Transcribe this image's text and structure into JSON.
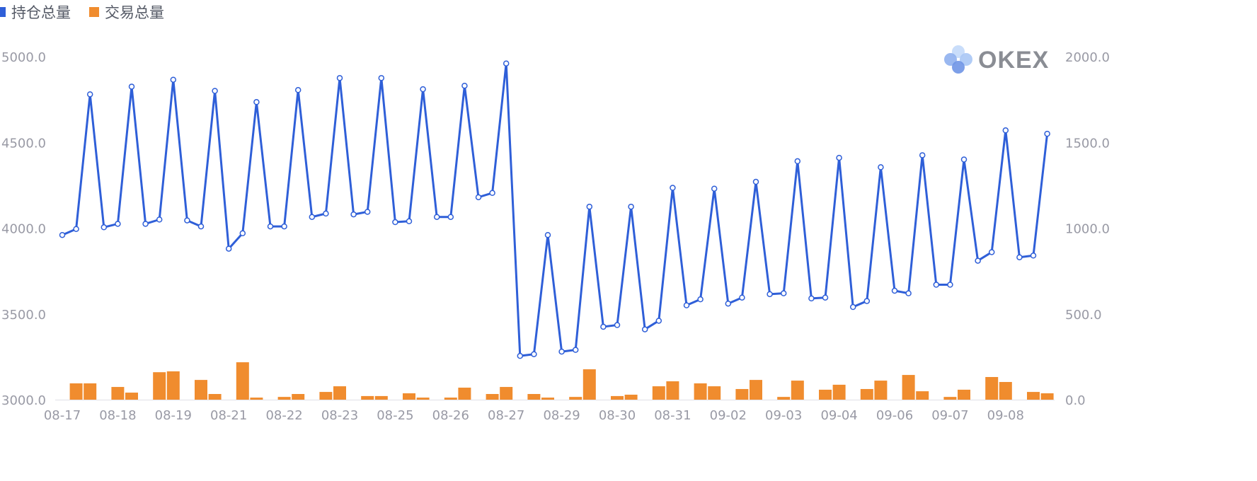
{
  "chart_data": {
    "type": "bar+line",
    "title": "",
    "xlabel": "",
    "ylabel": "",
    "legend_position": "top-left",
    "grid": false,
    "x_tick_labels": [
      "08-17",
      "08-18",
      "08-19",
      "08-21",
      "08-22",
      "08-23",
      "08-25",
      "08-26",
      "08-27",
      "08-29",
      "08-30",
      "08-31",
      "09-02",
      "09-03",
      "09-04",
      "09-06",
      "09-07",
      "09-08"
    ],
    "y_left": {
      "range": [
        3000,
        5000
      ],
      "ticks": [
        "3000.0",
        "3500.0",
        "4000.0",
        "4500.0",
        "5000.0"
      ]
    },
    "y_right": {
      "range": [
        0,
        2000
      ],
      "ticks": [
        "0.0",
        "500.0",
        "1000.0",
        "1500.0",
        "2000.0"
      ]
    },
    "series": [
      {
        "name": "持仓总量",
        "type": "line",
        "axis": "left",
        "color": "#2f5fd8",
        "values": [
          3960,
          3995,
          4780,
          4005,
          4025,
          4825,
          4025,
          4050,
          4865,
          4045,
          4010,
          4800,
          3880,
          3970,
          4735,
          4010,
          4010,
          4805,
          4065,
          4085,
          4875,
          4080,
          4095,
          4875,
          4035,
          4040,
          4810,
          4065,
          4065,
          4830,
          4180,
          4205,
          4960,
          3255,
          3265,
          3960,
          3280,
          3290,
          4125,
          3425,
          3435,
          4125,
          3410,
          3460,
          4235,
          3550,
          3585,
          4230,
          3560,
          3595,
          4270,
          3615,
          3620,
          4390,
          3590,
          3595,
          4410,
          3540,
          3575,
          4355,
          3635,
          3620,
          4425,
          3670,
          3670,
          4400,
          3810,
          3860,
          4570,
          3830,
          3840,
          4550
        ]
      },
      {
        "name": "交易总量",
        "type": "bar",
        "axis": "right",
        "color": "#f08c2e",
        "values": [
          null,
          95,
          95,
          null,
          74,
          41,
          null,
          160,
          165,
          null,
          115,
          33,
          null,
          218,
          12,
          null,
          16,
          33,
          null,
          45,
          78,
          null,
          21,
          21,
          null,
          37,
          12,
          null,
          12,
          70,
          null,
          33,
          74,
          null,
          33,
          12,
          null,
          16,
          177,
          null,
          21,
          29,
          null,
          78,
          107,
          null,
          95,
          78,
          null,
          62,
          115,
          null,
          16,
          111,
          null,
          58,
          87,
          null,
          62,
          111,
          null,
          144,
          49,
          null,
          16,
          58,
          null,
          132,
          103,
          null,
          45,
          37
        ]
      }
    ]
  },
  "logo": {
    "text": "OKEX"
  }
}
